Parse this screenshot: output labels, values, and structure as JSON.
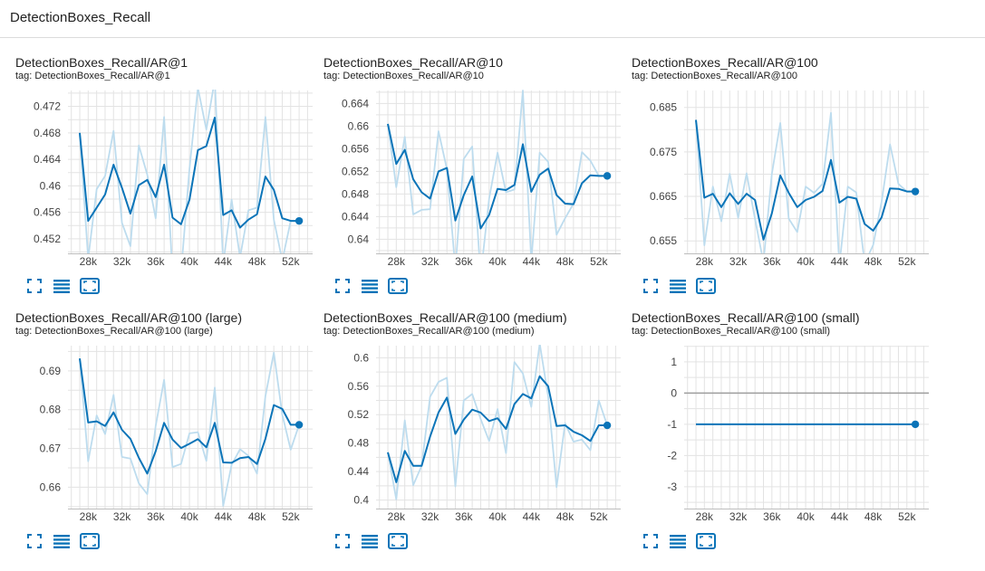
{
  "header": {
    "title": "DetectionBoxes_Recall"
  },
  "accent_color": "#0b74b8",
  "raw_color": "#bddcee",
  "toolbar_icons": [
    "fullscreen-icon",
    "data-table-icon",
    "fit-domain-icon"
  ],
  "cards": [
    {
      "title": "DetectionBoxes_Recall/AR@1",
      "tag": "tag: DetectionBoxes_Recall/AR@1",
      "x_ticks": [
        "28k",
        "32k",
        "36k",
        "40k",
        "44k",
        "48k",
        "52k"
      ],
      "y_ticks": [
        "0.472",
        "0.468",
        "0.464",
        "0.46",
        "0.456",
        "0.452"
      ],
      "chart_data": {
        "type": "line",
        "title": "DetectionBoxes_Recall/AR@1",
        "xlim": [
          25600,
          54600
        ],
        "ylim": [
          0.4498,
          0.4744
        ],
        "x_tick_values": [
          28000,
          32000,
          36000,
          40000,
          44000,
          48000,
          52000
        ],
        "y_tick_values": [
          0.472,
          0.468,
          0.464,
          0.46,
          0.456,
          0.452
        ],
        "series": [
          {
            "x": [
              27000,
              28000,
              29000,
              30000,
              31000,
              32000,
              33000,
              34000,
              35000,
              36000,
              37000,
              38000,
              39000,
              40000,
              41000,
              42000,
              43000,
              44000,
              45000,
              46000,
              47000,
              48000,
              49000,
              50000,
              51000,
              52000,
              53000
            ],
            "y": [
              0.468,
              0.4547,
              0.4567,
              0.4587,
              0.4632,
              0.4597,
              0.4558,
              0.4601,
              0.4609,
              0.4583,
              0.4632,
              0.4552,
              0.4542,
              0.4579,
              0.4654,
              0.466,
              0.4703,
              0.4556,
              0.4563,
              0.4537,
              0.4549,
              0.4557,
              0.4614,
              0.4594,
              0.4551,
              0.4547,
              0.4547
            ]
          },
          {
            "x": [
              27000,
              28000,
              29000,
              30000,
              31000,
              32000,
              33000,
              34000,
              35000,
              36000,
              37000,
              38000,
              39000,
              40000,
              41000,
              42000,
              43000,
              44000,
              45000,
              46000,
              47000,
              48000,
              49000,
              50000,
              51000,
              52000,
              53000
            ],
            "y": [
              0.4678,
              0.449,
              0.4595,
              0.4615,
              0.4683,
              0.4544,
              0.4509,
              0.4661,
              0.4617,
              0.4551,
              0.4704,
              0.4466,
              0.4469,
              0.4626,
              0.4748,
              0.4685,
              0.476,
              0.4482,
              0.4579,
              0.4492,
              0.4563,
              0.4567,
              0.4704,
              0.4549,
              0.4487,
              0.4547,
              0.4547
            ]
          }
        ]
      }
    },
    {
      "title": "DetectionBoxes_Recall/AR@10",
      "tag": "tag: DetectionBoxes_Recall/AR@10",
      "x_ticks": [
        "28k",
        "32k",
        "36k",
        "40k",
        "44k",
        "48k",
        "52k"
      ],
      "y_ticks": [
        "0.664",
        "0.66",
        "0.656",
        "0.652",
        "0.648",
        "0.644",
        "0.64"
      ],
      "chart_data": {
        "type": "line",
        "title": "DetectionBoxes_Recall/AR@10",
        "xlim": [
          25600,
          54600
        ],
        "ylim": [
          0.6375,
          0.6663
        ],
        "x_tick_values": [
          28000,
          32000,
          36000,
          40000,
          44000,
          48000,
          52000
        ],
        "y_tick_values": [
          0.664,
          0.66,
          0.656,
          0.652,
          0.648,
          0.644,
          0.64
        ],
        "series": [
          {
            "x": [
              27000,
              28000,
              29000,
              30000,
              31000,
              32000,
              33000,
              34000,
              35000,
              36000,
              37000,
              38000,
              39000,
              40000,
              41000,
              42000,
              43000,
              44000,
              45000,
              46000,
              47000,
              48000,
              49000,
              50000,
              51000,
              52000,
              53000
            ],
            "y": [
              0.6604,
              0.6533,
              0.6558,
              0.6506,
              0.6483,
              0.6472,
              0.652,
              0.6526,
              0.6433,
              0.6478,
              0.6511,
              0.6419,
              0.6443,
              0.6489,
              0.6487,
              0.6496,
              0.6568,
              0.6484,
              0.6514,
              0.6525,
              0.6478,
              0.6463,
              0.6462,
              0.6499,
              0.6513,
              0.6512,
              0.6512
            ]
          },
          {
            "x": [
              27000,
              28000,
              29000,
              30000,
              31000,
              32000,
              33000,
              34000,
              35000,
              36000,
              37000,
              38000,
              39000,
              40000,
              41000,
              42000,
              43000,
              44000,
              45000,
              46000,
              47000,
              48000,
              49000,
              50000,
              51000,
              52000,
              53000
            ],
            "y": [
              0.6604,
              0.6492,
              0.6581,
              0.6444,
              0.6452,
              0.6453,
              0.6591,
              0.6524,
              0.6348,
              0.6542,
              0.6564,
              0.6335,
              0.6472,
              0.6553,
              0.6483,
              0.6488,
              0.6663,
              0.6361,
              0.6553,
              0.6537,
              0.6408,
              0.6437,
              0.6463,
              0.6554,
              0.6539,
              0.6512,
              0.6512
            ]
          }
        ]
      }
    },
    {
      "title": "DetectionBoxes_Recall/AR@100",
      "tag": "tag: DetectionBoxes_Recall/AR@100",
      "x_ticks": [
        "28k",
        "32k",
        "36k",
        "40k",
        "44k",
        "48k",
        "52k"
      ],
      "y_ticks": [
        "0.685",
        "0.675",
        "0.665",
        "0.655"
      ],
      "chart_data": {
        "type": "line",
        "title": "DetectionBoxes_Recall/AR@100",
        "xlim": [
          25600,
          54600
        ],
        "ylim": [
          0.6522,
          0.6888
        ],
        "x_tick_values": [
          28000,
          32000,
          36000,
          40000,
          44000,
          48000,
          52000
        ],
        "y_tick_values": [
          0.685,
          0.675,
          0.665,
          0.655
        ],
        "series": [
          {
            "x": [
              27000,
              28000,
              29000,
              30000,
              31000,
              32000,
              33000,
              34000,
              35000,
              36000,
              37000,
              38000,
              39000,
              40000,
              41000,
              42000,
              43000,
              44000,
              45000,
              46000,
              47000,
              48000,
              49000,
              50000,
              51000,
              52000,
              53000
            ],
            "y": [
              0.6822,
              0.6647,
              0.6656,
              0.6626,
              0.6657,
              0.6633,
              0.6656,
              0.6642,
              0.6553,
              0.6612,
              0.6697,
              0.6658,
              0.6626,
              0.6642,
              0.6649,
              0.6662,
              0.6732,
              0.6636,
              0.6649,
              0.6645,
              0.6588,
              0.6573,
              0.6603,
              0.6668,
              0.6667,
              0.6661,
              0.6661
            ]
          },
          {
            "x": [
              27000,
              28000,
              29000,
              30000,
              31000,
              32000,
              33000,
              34000,
              35000,
              36000,
              37000,
              38000,
              39000,
              40000,
              41000,
              42000,
              43000,
              44000,
              45000,
              46000,
              47000,
              48000,
              49000,
              50000,
              51000,
              52000,
              53000
            ],
            "y": [
              0.6822,
              0.654,
              0.6672,
              0.6594,
              0.6701,
              0.6602,
              0.6702,
              0.6599,
              0.6502,
              0.6701,
              0.6815,
              0.66,
              0.657,
              0.6672,
              0.6658,
              0.6678,
              0.6838,
              0.6495,
              0.6672,
              0.6659,
              0.6499,
              0.6541,
              0.6638,
              0.6767,
              0.6678,
              0.6661,
              0.6661
            ]
          }
        ]
      }
    },
    {
      "title": "DetectionBoxes_Recall/AR@100 (large)",
      "tag": "tag: DetectionBoxes_Recall/AR@100 (large)",
      "x_ticks": [
        "28k",
        "32k",
        "36k",
        "40k",
        "44k",
        "48k",
        "52k"
      ],
      "y_ticks": [
        "0.69",
        "0.68",
        "0.67",
        "0.66"
      ],
      "chart_data": {
        "type": "line",
        "title": "DetectionBoxes_Recall/AR@100 (large)",
        "xlim": [
          25600,
          54600
        ],
        "ylim": [
          0.6545,
          0.6965
        ],
        "x_tick_values": [
          28000,
          32000,
          36000,
          40000,
          44000,
          48000,
          52000
        ],
        "y_tick_values": [
          0.69,
          0.68,
          0.67,
          0.66
        ],
        "series": [
          {
            "x": [
              27000,
              28000,
              29000,
              30000,
              31000,
              32000,
              33000,
              34000,
              35000,
              36000,
              37000,
              38000,
              39000,
              40000,
              41000,
              42000,
              43000,
              44000,
              45000,
              46000,
              47000,
              48000,
              49000,
              50000,
              51000,
              52000,
              53000
            ],
            "y": [
              0.6932,
              0.6767,
              0.677,
              0.6758,
              0.6793,
              0.6748,
              0.6725,
              0.6676,
              0.6635,
              0.6693,
              0.6766,
              0.6723,
              0.6701,
              0.6712,
              0.6724,
              0.6703,
              0.6766,
              0.6664,
              0.6663,
              0.6675,
              0.6678,
              0.666,
              0.6725,
              0.6812,
              0.6802,
              0.6761,
              0.6761
            ]
          },
          {
            "x": [
              27000,
              28000,
              29000,
              30000,
              31000,
              32000,
              33000,
              34000,
              35000,
              36000,
              37000,
              38000,
              39000,
              40000,
              41000,
              42000,
              43000,
              44000,
              45000,
              46000,
              47000,
              48000,
              49000,
              50000,
              51000,
              52000,
              53000
            ],
            "y": [
              0.6932,
              0.6667,
              0.6785,
              0.6737,
              0.6838,
              0.6678,
              0.6674,
              0.661,
              0.6582,
              0.6758,
              0.6877,
              0.6652,
              0.666,
              0.6739,
              0.6742,
              0.6668,
              0.6857,
              0.6552,
              0.6658,
              0.6698,
              0.6681,
              0.6635,
              0.6835,
              0.6947,
              0.6787,
              0.6697,
              0.6761
            ]
          }
        ]
      }
    },
    {
      "title": "DetectionBoxes_Recall/AR@100 (medium)",
      "tag": "tag: DetectionBoxes_Recall/AR@100 (medium)",
      "x_ticks": [
        "28k",
        "32k",
        "36k",
        "40k",
        "44k",
        "48k",
        "52k"
      ],
      "y_ticks": [
        "0.6",
        "0.56",
        "0.52",
        "0.48",
        "0.44",
        "0.4"
      ],
      "chart_data": {
        "type": "line",
        "title": "DetectionBoxes_Recall/AR@100 (medium)",
        "xlim": [
          25600,
          54600
        ],
        "ylim": [
          0.388,
          0.617
        ],
        "x_tick_values": [
          28000,
          32000,
          36000,
          40000,
          44000,
          48000,
          52000
        ],
        "y_tick_values": [
          0.6,
          0.56,
          0.52,
          0.48,
          0.44,
          0.4
        ],
        "series": [
          {
            "x": [
              27000,
              28000,
              29000,
              30000,
              31000,
              32000,
              33000,
              34000,
              35000,
              36000,
              37000,
              38000,
              39000,
              40000,
              41000,
              42000,
              43000,
              44000,
              45000,
              46000,
              47000,
              48000,
              49000,
              50000,
              51000,
              52000,
              53000
            ],
            "y": [
              0.467,
              0.425,
              0.469,
              0.448,
              0.448,
              0.489,
              0.523,
              0.544,
              0.493,
              0.513,
              0.527,
              0.523,
              0.511,
              0.515,
              0.5,
              0.535,
              0.549,
              0.543,
              0.574,
              0.56,
              0.504,
              0.505,
              0.496,
              0.491,
              0.483,
              0.505,
              0.505
            ]
          },
          {
            "x": [
              27000,
              28000,
              29000,
              30000,
              31000,
              32000,
              33000,
              34000,
              35000,
              36000,
              37000,
              38000,
              39000,
              40000,
              41000,
              42000,
              43000,
              44000,
              45000,
              46000,
              47000,
              48000,
              49000,
              50000,
              51000,
              52000,
              53000
            ],
            "y": [
              0.467,
              0.401,
              0.512,
              0.421,
              0.448,
              0.545,
              0.566,
              0.572,
              0.419,
              0.54,
              0.549,
              0.514,
              0.483,
              0.528,
              0.466,
              0.594,
              0.578,
              0.531,
              0.62,
              0.546,
              0.418,
              0.508,
              0.482,
              0.485,
              0.47,
              0.54,
              0.505
            ]
          }
        ]
      }
    },
    {
      "title": "DetectionBoxes_Recall/AR@100 (small)",
      "tag": "tag: DetectionBoxes_Recall/AR@100 (small)",
      "x_ticks": [
        "28k",
        "32k",
        "36k",
        "40k",
        "44k",
        "48k",
        "52k"
      ],
      "y_ticks": [
        "1",
        "0",
        "-1",
        "-2",
        "-3"
      ],
      "chart_data": {
        "type": "line",
        "title": "DetectionBoxes_Recall/AR@100 (small)",
        "xlim": [
          25600,
          54600
        ],
        "ylim": [
          -3.7,
          1.52
        ],
        "x_tick_values": [
          28000,
          32000,
          36000,
          40000,
          44000,
          48000,
          52000
        ],
        "y_tick_values": [
          1,
          0,
          -1,
          -2,
          -3
        ],
        "zero_line": true,
        "series": [
          {
            "x": [
              27000,
              53000
            ],
            "y": [
              -1,
              -1
            ]
          }
        ]
      }
    }
  ]
}
